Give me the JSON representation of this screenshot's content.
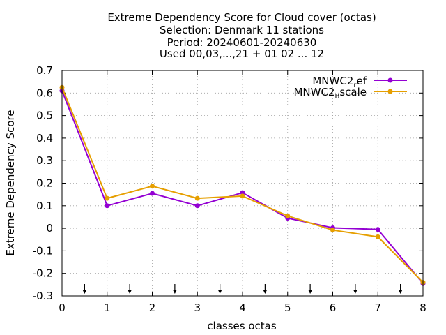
{
  "chart_data": {
    "type": "line",
    "title_lines": [
      "Extreme Dependency Score  for Cloud cover (octas)",
      "Selection: Denmark     11 stations",
      "Period: 20240601-20240630",
      "Used 00,03,...,21 + 01 02 ... 12"
    ],
    "xlabel": "classes octas",
    "ylabel": "Extreme Dependency Score",
    "xlim": [
      0,
      8
    ],
    "ylim": [
      -0.3,
      0.7
    ],
    "xticks": [
      "0",
      "1",
      "2",
      "3",
      "4",
      "5",
      "6",
      "7",
      "8"
    ],
    "yticks": [
      "-0.3",
      "-0.2",
      "-0.1",
      "0",
      "0.1",
      "0.2",
      "0.3",
      "0.4",
      "0.5",
      "0.6",
      "0.7"
    ],
    "grid": true,
    "legend_position": "top-right",
    "arrow_markers_x": [
      0.5,
      1.5,
      2.5,
      3.5,
      4.5,
      5.5,
      6.5,
      7.5
    ],
    "x": [
      0,
      1,
      2,
      3,
      4,
      5,
      6,
      7,
      8
    ],
    "series": [
      {
        "name_base": "MNWC2",
        "name_sub": "r",
        "name_rest": "ef",
        "color": "#9400d3",
        "values": [
          0.61,
          0.1,
          0.155,
          0.1,
          0.158,
          0.045,
          0.002,
          -0.005,
          -0.245
        ]
      },
      {
        "name_base": "MNWC2",
        "name_sub": "B",
        "name_rest": "scale",
        "color": "#e69f00",
        "values": [
          0.625,
          0.133,
          0.187,
          0.133,
          0.143,
          0.055,
          -0.008,
          -0.038,
          -0.24
        ]
      }
    ]
  }
}
